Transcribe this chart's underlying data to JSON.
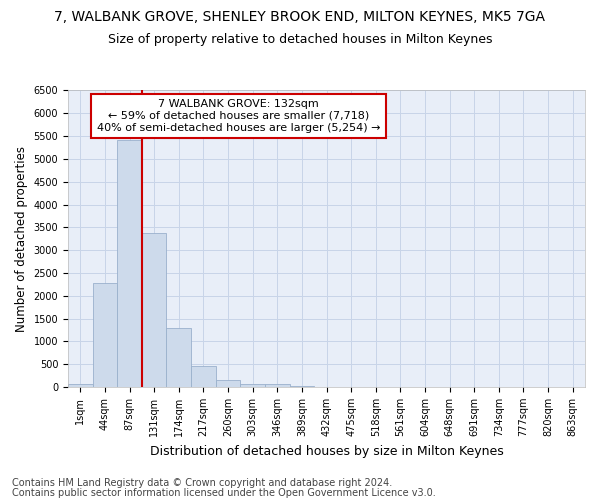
{
  "title1": "7, WALBANK GROVE, SHENLEY BROOK END, MILTON KEYNES, MK5 7GA",
  "title2": "Size of property relative to detached houses in Milton Keynes",
  "xlabel": "Distribution of detached houses by size in Milton Keynes",
  "ylabel": "Number of detached properties",
  "footer1": "Contains HM Land Registry data © Crown copyright and database right 2024.",
  "footer2": "Contains public sector information licensed under the Open Government Licence v3.0.",
  "bar_labels": [
    "1sqm",
    "44sqm",
    "87sqm",
    "131sqm",
    "174sqm",
    "217sqm",
    "260sqm",
    "303sqm",
    "346sqm",
    "389sqm",
    "432sqm",
    "475sqm",
    "518sqm",
    "561sqm",
    "604sqm",
    "648sqm",
    "691sqm",
    "734sqm",
    "777sqm",
    "820sqm",
    "863sqm"
  ],
  "bar_values": [
    75,
    2280,
    5420,
    3380,
    1300,
    470,
    155,
    75,
    55,
    30,
    0,
    0,
    0,
    0,
    0,
    0,
    0,
    0,
    0,
    0,
    0
  ],
  "bar_color": "#cddaeb",
  "bar_edgecolor": "#9ab0cc",
  "vline_index": 3,
  "vline_color": "#cc0000",
  "annotation_line1": "7 WALBANK GROVE: 132sqm",
  "annotation_line2": "← 59% of detached houses are smaller (7,718)",
  "annotation_line3": "40% of semi-detached houses are larger (5,254) →",
  "annotation_box_color": "#ffffff",
  "annotation_box_edge": "#cc0000",
  "ylim": [
    0,
    6500
  ],
  "yticks": [
    0,
    500,
    1000,
    1500,
    2000,
    2500,
    3000,
    3500,
    4000,
    4500,
    5000,
    5500,
    6000,
    6500
  ],
  "grid_color": "#c8d4e8",
  "bg_color": "#e8eef8",
  "title1_fontsize": 10,
  "title2_fontsize": 9,
  "xlabel_fontsize": 9,
  "ylabel_fontsize": 8.5,
  "tick_fontsize": 7,
  "footer_fontsize": 7,
  "ann_fontsize": 8
}
